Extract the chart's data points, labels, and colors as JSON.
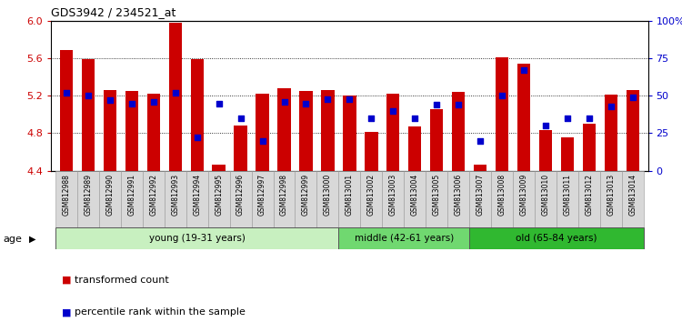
{
  "title": "GDS3942 / 234521_at",
  "samples": [
    "GSM812988",
    "GSM812989",
    "GSM812990",
    "GSM812991",
    "GSM812992",
    "GSM812993",
    "GSM812994",
    "GSM812995",
    "GSM812996",
    "GSM812997",
    "GSM812998",
    "GSM812999",
    "GSM813000",
    "GSM813001",
    "GSM813002",
    "GSM813003",
    "GSM813004",
    "GSM813005",
    "GSM813006",
    "GSM813007",
    "GSM813008",
    "GSM813009",
    "GSM813010",
    "GSM813011",
    "GSM813012",
    "GSM813013",
    "GSM813014"
  ],
  "transformed_count": [
    5.69,
    5.59,
    5.26,
    5.25,
    5.22,
    5.98,
    5.59,
    4.46,
    4.88,
    5.22,
    5.28,
    5.25,
    5.26,
    5.2,
    4.81,
    5.22,
    4.87,
    5.06,
    5.24,
    4.46,
    5.61,
    5.54,
    4.83,
    4.76,
    4.9,
    5.21,
    5.26
  ],
  "percentile_rank": [
    52,
    50,
    47,
    45,
    46,
    52,
    22,
    45,
    35,
    20,
    46,
    45,
    48,
    48,
    35,
    40,
    35,
    44,
    44,
    20,
    50,
    67,
    30,
    35,
    35,
    43,
    49
  ],
  "ylim_left": [
    4.4,
    6.0
  ],
  "ylim_right": [
    0,
    100
  ],
  "yticks_left": [
    4.4,
    4.8,
    5.2,
    5.6,
    6.0
  ],
  "yticks_right": [
    0,
    25,
    50,
    75,
    100
  ],
  "ytick_labels_right": [
    "0",
    "25",
    "50",
    "75",
    "100%"
  ],
  "bar_color": "#cc0000",
  "marker_color": "#0000cc",
  "age_groups": [
    {
      "label": "young (19-31 years)",
      "start": 0,
      "end": 13,
      "color": "#c8f0c0"
    },
    {
      "label": "middle (42-61 years)",
      "start": 13,
      "end": 19,
      "color": "#70d870"
    },
    {
      "label": "old (65-84 years)",
      "start": 19,
      "end": 27,
      "color": "#30b830"
    }
  ],
  "legend_items": [
    {
      "label": "transformed count",
      "color": "#cc0000"
    },
    {
      "label": "percentile rank within the sample",
      "color": "#0000cc"
    }
  ],
  "bar_baseline": 4.4,
  "gridline_vals": [
    4.8,
    5.2,
    5.6
  ]
}
